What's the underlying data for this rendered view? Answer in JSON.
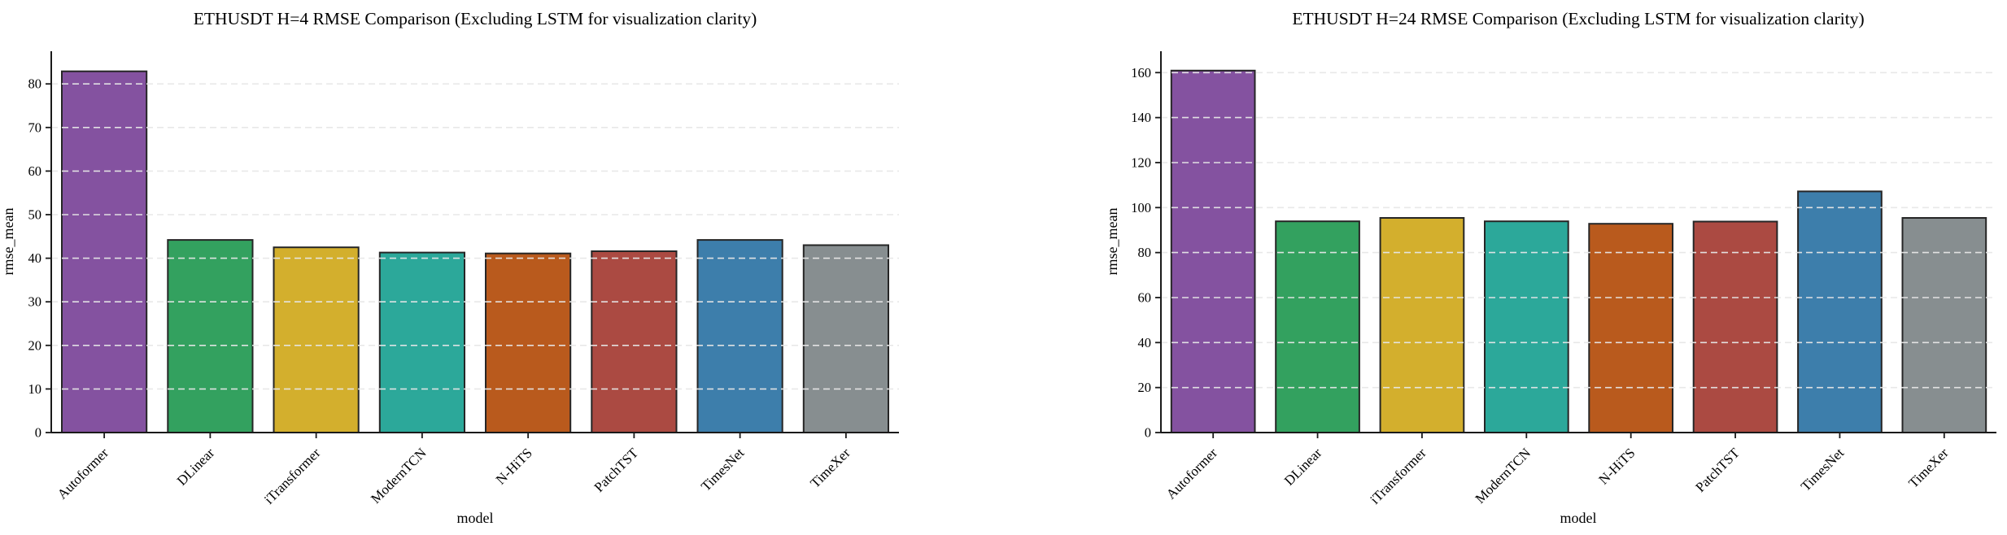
{
  "page": {
    "background": "#ffffff"
  },
  "styles": {
    "bar_edge_color": "#262626",
    "grid_color": "#e7e7e7",
    "axis_color": "#1a1a1a",
    "text_color": "#000000"
  },
  "chart_data": [
    {
      "type": "bar",
      "title": "ETHUSDT H=4 RMSE Comparison (Excluding LSTM for visualization clarity)",
      "xlabel": "model",
      "ylabel": "rmse_mean",
      "categories": [
        "Autoformer",
        "DLinear",
        "iTransformer",
        "ModernTCN",
        "N-HiTS",
        "PatchTST",
        "TimesNet",
        "TimeXer"
      ],
      "values": [
        82.9,
        44.2,
        42.5,
        41.3,
        41.1,
        41.6,
        44.2,
        43.0
      ],
      "bar_colors": [
        "#8452a0",
        "#33a15f",
        "#d3af2d",
        "#2ca89a",
        "#b95a1d",
        "#ab4a42",
        "#3d7eab",
        "#878e90"
      ],
      "ylim": [
        0,
        87.5
      ],
      "ytick_step": 10,
      "ytick_max": 80,
      "grid": "horizontal-dashed",
      "legend": "none",
      "xtick_rotation": 45
    },
    {
      "type": "bar",
      "title": "ETHUSDT H=24 RMSE Comparison (Excluding LSTM for visualization clarity)",
      "xlabel": "model",
      "ylabel": "rmse_mean",
      "categories": [
        "Autoformer",
        "DLinear",
        "iTransformer",
        "ModernTCN",
        "N-HiTS",
        "PatchTST",
        "TimesNet",
        "TimeXer"
      ],
      "values": [
        160.9,
        93.9,
        95.4,
        93.9,
        92.8,
        93.8,
        107.2,
        95.4
      ],
      "bar_colors": [
        "#8452a0",
        "#33a15f",
        "#d3af2d",
        "#2ca89a",
        "#b95a1d",
        "#ab4a42",
        "#3d7eab",
        "#878e90"
      ],
      "ylim": [
        0,
        169.5
      ],
      "ytick_step": 20,
      "ytick_max": 160,
      "grid": "horizontal-dashed",
      "legend": "none",
      "xtick_rotation": 45
    }
  ]
}
